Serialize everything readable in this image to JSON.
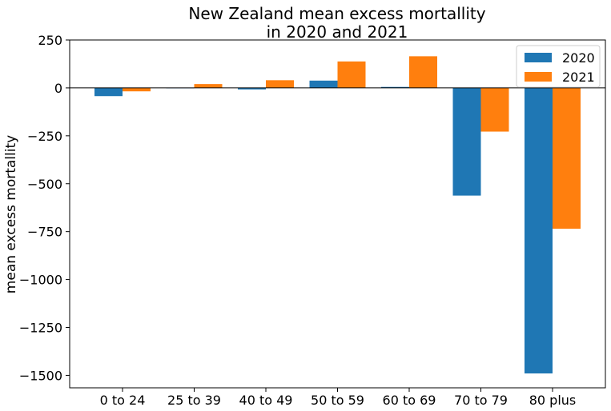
{
  "chart_data": {
    "type": "bar",
    "title_line1": "New Zealand mean excess mortallity",
    "title_line2": "in 2020 and 2021",
    "xlabel": "",
    "ylabel": "mean excess mortallity",
    "categories": [
      "0 to 24",
      "25 to 39",
      "40 to 49",
      "50 to 59",
      "60 to 69",
      "70 to 79",
      "80 plus"
    ],
    "series": [
      {
        "name": "2020",
        "color": "#1f77b4",
        "values": [
          -43,
          -2,
          -8,
          38,
          5,
          -562,
          -1490
        ]
      },
      {
        "name": "2021",
        "color": "#ff7f0e",
        "values": [
          -18,
          20,
          40,
          138,
          165,
          -228,
          -735
        ]
      }
    ],
    "ylim": [
      -1565,
      250
    ],
    "yticks": [
      250,
      0,
      -250,
      -500,
      -750,
      -1000,
      -1250,
      -1500
    ],
    "ytick_labels": [
      "250",
      "0",
      "−250",
      "−500",
      "−750",
      "−1000",
      "−1250",
      "−1500"
    ],
    "zero_line": true,
    "grid": false,
    "legend_position": "top-right"
  }
}
